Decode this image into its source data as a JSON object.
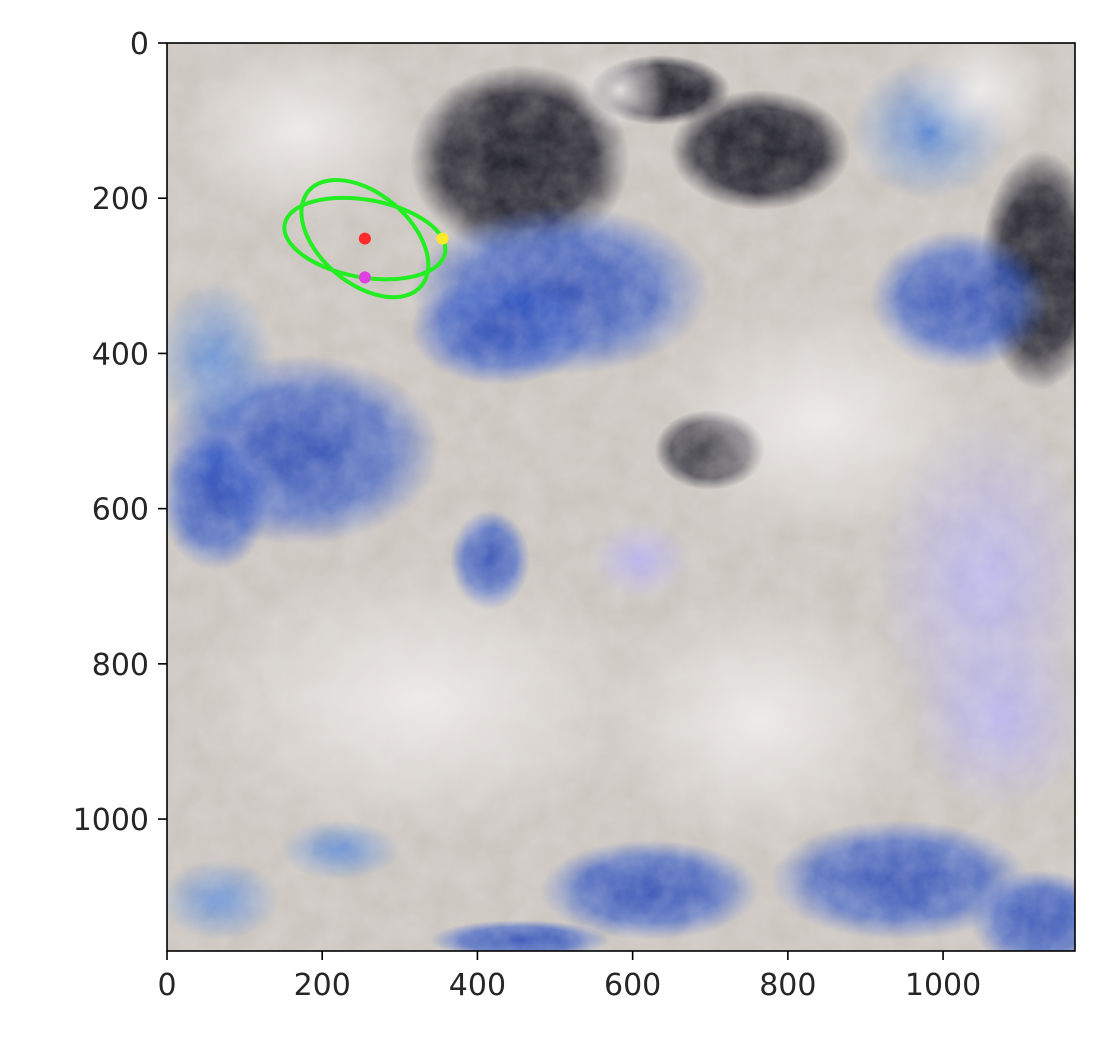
{
  "chart_data": {
    "type": "scatter",
    "image": "satellite-cloud-imagery",
    "title": "",
    "xlabel": "",
    "ylabel": "",
    "xlim": [
      0,
      1170
    ],
    "ylim": [
      1170,
      0
    ],
    "x_ticks": [
      0,
      200,
      400,
      600,
      800,
      1000
    ],
    "y_ticks": [
      0,
      200,
      400,
      600,
      800,
      1000
    ],
    "grid": false,
    "legend": "none",
    "points": [
      {
        "name": "",
        "x": 255,
        "y": 252,
        "color": "#ff2a2a"
      },
      {
        "name": "",
        "x": 355,
        "y": 252,
        "color": "#ffe82a"
      },
      {
        "name": "",
        "x": 255,
        "y": 302,
        "color": "#e040e0"
      }
    ],
    "ellipses": [
      {
        "cx": 255,
        "cy": 252,
        "rx": 105,
        "ry": 50,
        "angle_deg": 10,
        "color": "#22ee22"
      },
      {
        "cx": 255,
        "cy": 252,
        "rx": 95,
        "ry": 58,
        "angle_deg": 40,
        "color": "#22ee22"
      }
    ]
  }
}
